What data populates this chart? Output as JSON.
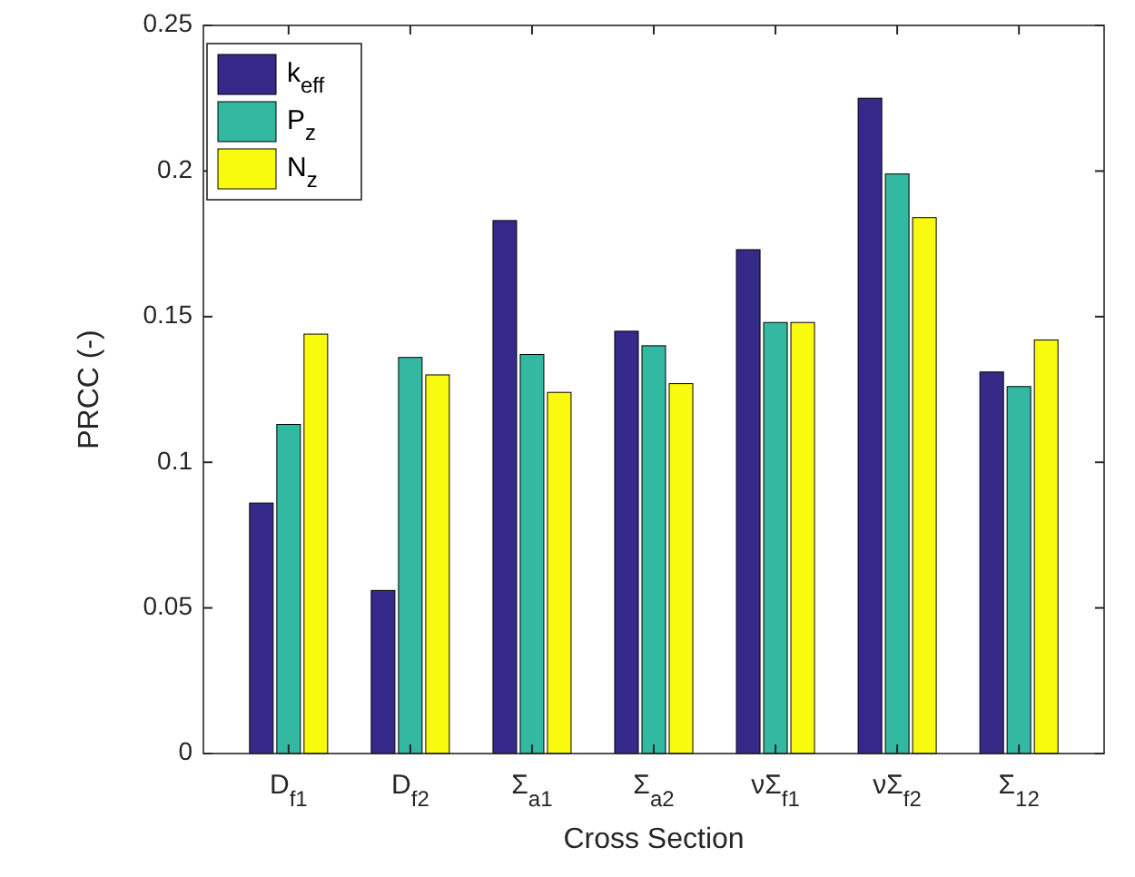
{
  "chart_data": {
    "type": "bar",
    "xlabel": "Cross Section",
    "ylabel": "PRCC (-)",
    "categories": [
      "D$_{f1}$",
      "D$_{f2}$",
      "Σ$_{a1}$",
      "Σ$_{a2}$",
      "νΣ$_{f1}$",
      "νΣ$_{f2}$",
      "Σ$_{12}$"
    ],
    "series": [
      {
        "name": "k$_{eff}$",
        "color": "#35298a",
        "values": [
          0.086,
          0.056,
          0.183,
          0.145,
          0.173,
          0.225,
          0.131
        ]
      },
      {
        "name": "P$_{z}$",
        "color": "#33b8a1",
        "values": [
          0.113,
          0.136,
          0.137,
          0.14,
          0.148,
          0.199,
          0.126
        ]
      },
      {
        "name": "N$_{z}$",
        "color": "#f9fb0e",
        "values": [
          0.144,
          0.13,
          0.124,
          0.127,
          0.148,
          0.184,
          0.142
        ]
      }
    ],
    "ylim": [
      0,
      0.25
    ],
    "yticks": [
      0,
      0.05,
      0.1,
      0.15,
      0.2,
      0.25
    ],
    "grid": false,
    "legend": "top left"
  }
}
